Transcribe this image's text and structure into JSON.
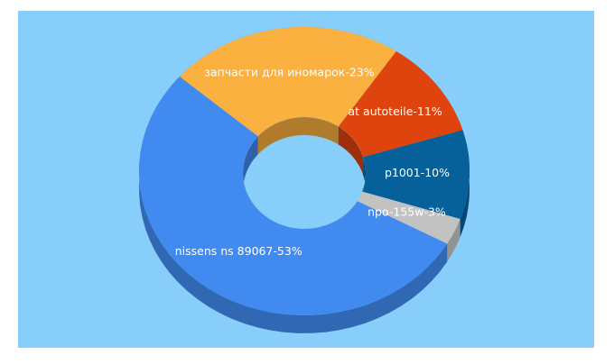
{
  "chart_data": {
    "type": "pie",
    "values": [
      23,
      11,
      10,
      3,
      53
    ],
    "value_labels": [
      "запчасти для иномарок-23%",
      "at autoteile-11%",
      "p1001-10%",
      "npo-155w-3%",
      "nissens ns 89067-53%"
    ],
    "colors": [
      "#fbb13f",
      "#e0440e",
      "#06609a",
      "#c2c2c2",
      "#418bf0"
    ]
  }
}
